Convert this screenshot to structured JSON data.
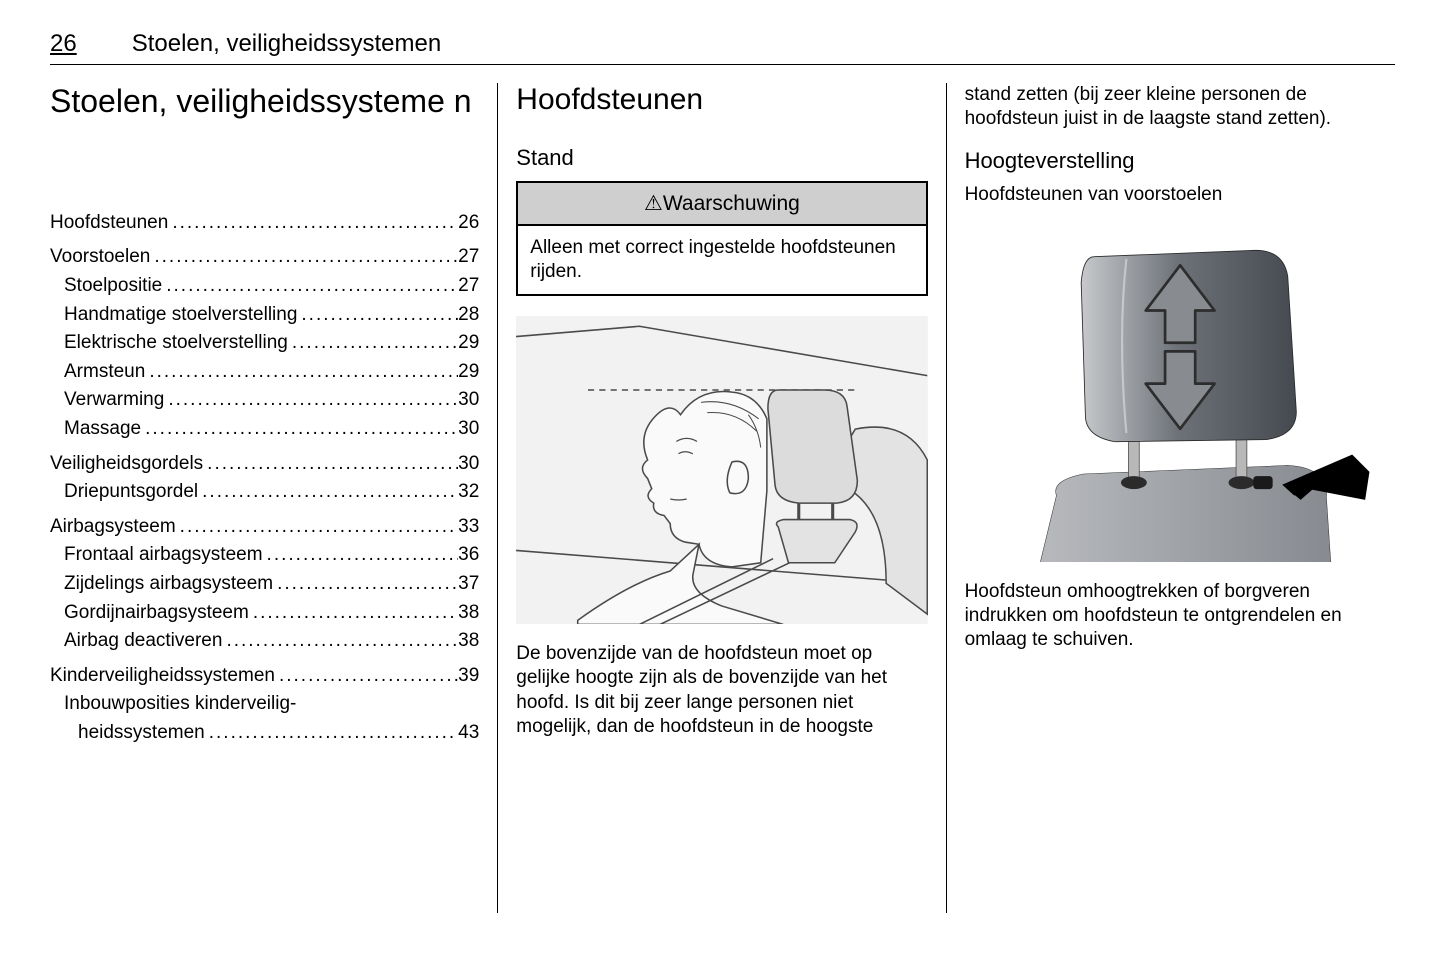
{
  "header": {
    "page_number": "26",
    "running_title": "Stoelen, veiligheidssystemen"
  },
  "col1": {
    "chapter_title": "Stoelen, veiligheidssysteme n",
    "toc": [
      {
        "label": "Hoofdsteunen",
        "page": "26",
        "level": 0
      },
      {
        "label": "Voorstoelen",
        "page": "27",
        "level": 0
      },
      {
        "label": "Stoelpositie",
        "page": "27",
        "level": 1
      },
      {
        "label": "Handmatige stoelverstelling",
        "page": "28",
        "level": 1
      },
      {
        "label": "Elektrische stoelverstelling",
        "page": "29",
        "level": 1
      },
      {
        "label": "Armsteun",
        "page": "29",
        "level": 1
      },
      {
        "label": "Verwarming",
        "page": "30",
        "level": 1
      },
      {
        "label": "Massage",
        "page": "30",
        "level": 1
      },
      {
        "label": "Veiligheidsgordels",
        "page": "30",
        "level": 0
      },
      {
        "label": "Driepuntsgordel",
        "page": "32",
        "level": 1
      },
      {
        "label": "Airbagsysteem",
        "page": "33",
        "level": 0
      },
      {
        "label": "Frontaal airbagsysteem",
        "page": "36",
        "level": 1
      },
      {
        "label": "Zijdelings airbagsysteem",
        "page": "37",
        "level": 1
      },
      {
        "label": "Gordijnairbagsysteem",
        "page": "38",
        "level": 1
      },
      {
        "label": "Airbag deactiveren",
        "page": "38",
        "level": 1
      },
      {
        "label": "Kinderveiligheidssystemen",
        "page": "39",
        "level": 0
      },
      {
        "label": "Inbouwposities kinderveilig-",
        "page": "",
        "level": 1,
        "nowrap": true
      },
      {
        "label": "heidssystemen",
        "page": "43",
        "level": 2
      }
    ]
  },
  "col2": {
    "section_title": "Hoofdsteunen",
    "subsection_title": "Stand",
    "warning_symbol": "⚠",
    "warning_title": "Waarschuwing",
    "warning_body": "Alleen met correct ingestelde hoofdsteunen rijden.",
    "body_text": "De bovenzijde van de hoofdsteun moet op gelijke hoogte zijn als de bovenzijde van het hoofd. Is dit bij zeer lange personen niet mogelijk, dan de hoofdsteun in de hoogste",
    "illustration": {
      "type": "line-drawing",
      "background": "#f2f2f2",
      "line_color": "#4a4a4a",
      "line_width": 1.5,
      "dash": "6 5",
      "aspect_w": 400,
      "aspect_h": 300,
      "headrest_fill": "#dcdcdc",
      "seat_fill": "#e3e3e3"
    }
  },
  "col3": {
    "continuation_text": "stand zetten (bij zeer kleine personen de hoofdsteun juist in de laagste stand zetten).",
    "subsection_title": "Hoogteverstelling",
    "subsubsection_title": "Hoofdsteunen van voorstoelen",
    "body_text": "Hoofdsteun omhoogtrekken of borg­veren indrukken om hoofdsteun te ontgrendelen en omlaag te schuiven.",
    "illustration": {
      "type": "shaded-drawing",
      "background": "#ffffff",
      "headrest_fill": "#454a50",
      "headrest_mid": "#6d7278",
      "headrest_light": "#c7c9cc",
      "seat_fill": "#878b90",
      "seat_light": "#b7b9bd",
      "post_color": "#b8b8b8",
      "arrow_fill": "#888c90",
      "arrow_stroke": "#2d2d2d",
      "black_arrow": "#000000",
      "aspect_w": 400,
      "aspect_h": 320
    }
  }
}
